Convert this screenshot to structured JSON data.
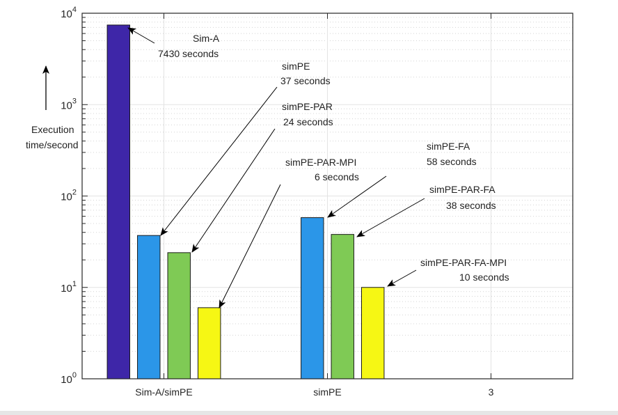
{
  "chart_data": {
    "type": "bar",
    "title": "",
    "xlabel": "",
    "ylabel": "Execution time/second",
    "ylabel_lines": [
      "Execution",
      "time/second"
    ],
    "yscale": "log",
    "ylim": [
      1,
      10000
    ],
    "y_ticks": [
      {
        "base": "10",
        "exp": "0"
      },
      {
        "base": "10",
        "exp": "1"
      },
      {
        "base": "10",
        "exp": "2"
      },
      {
        "base": "10",
        "exp": "3"
      },
      {
        "base": "10",
        "exp": "4"
      }
    ],
    "categories": [
      "Sim-A/simPE",
      "simPE",
      "3"
    ],
    "grid": true,
    "series": [
      {
        "values": [
          7430,
          null,
          null
        ],
        "color": "#3e26a8"
      },
      {
        "values": [
          37,
          58,
          null
        ],
        "color": "#2b96e8"
      },
      {
        "values": [
          24,
          38,
          null
        ],
        "color": "#7fca55"
      },
      {
        "values": [
          6,
          10,
          null
        ],
        "color": "#f6f714"
      }
    ],
    "annotations": [
      {
        "name": "Sim-A",
        "text": "7430 seconds"
      },
      {
        "name": "simPE",
        "text": "37 seconds"
      },
      {
        "name": "simPE-PAR",
        "text": "24 seconds"
      },
      {
        "name": "simPE-PAR-MPI",
        "text": "6 seconds"
      },
      {
        "name": "simPE-FA",
        "text": "58 seconds"
      },
      {
        "name": "simPE-PAR-FA",
        "text": "38 seconds"
      },
      {
        "name": "simPE-PAR-FA-MPI",
        "text": "10 seconds"
      }
    ]
  }
}
